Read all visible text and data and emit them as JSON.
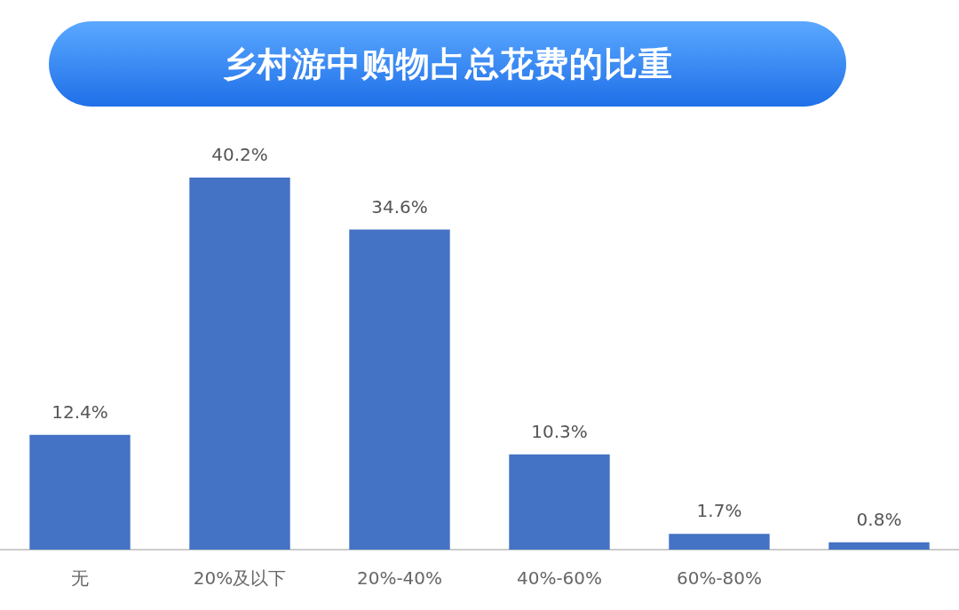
{
  "chart_data": {
    "type": "bar",
    "title": "乡村游中购物占总花费的比重",
    "categories": [
      "无",
      "20%及以下",
      "20%-40%",
      "40%-60%",
      "60%-80%",
      null
    ],
    "values": [
      12.4,
      40.2,
      34.6,
      10.3,
      1.7,
      0.8
    ],
    "value_labels": [
      "12.4%",
      "40.2%",
      "34.6%",
      "10.3%",
      "1.7%",
      "0.8%"
    ],
    "color": "#4472c4",
    "grid": false,
    "legend": false
  }
}
